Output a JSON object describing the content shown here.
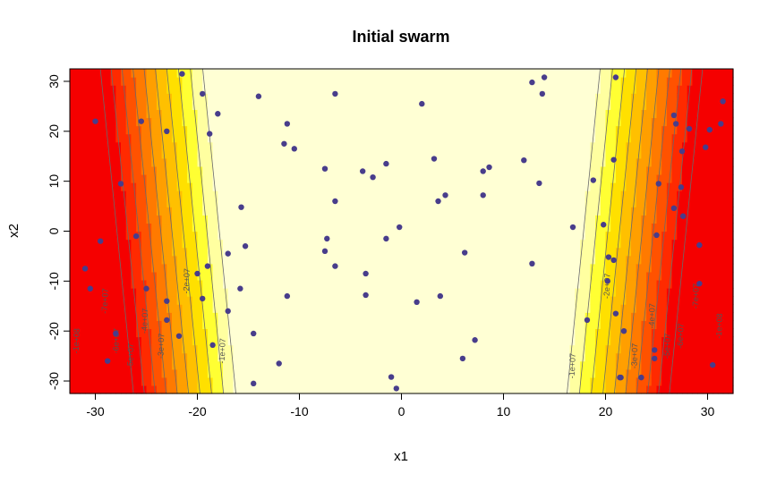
{
  "chart_data": {
    "type": "scatter",
    "title": "Initial swarm",
    "xlabel": "x1",
    "ylabel": "x2",
    "xlim": [
      -32.5,
      32.5
    ],
    "ylim": [
      -32.5,
      32.5
    ],
    "x_ticks": [
      -30,
      -20,
      -10,
      0,
      10,
      20,
      30
    ],
    "y_ticks": [
      -30,
      -20,
      -10,
      0,
      10,
      20,
      30
    ],
    "x_tick_labels": [
      "-30",
      "-20",
      "-10",
      "0",
      "10",
      "20",
      "30"
    ],
    "y_tick_labels": [
      "-30",
      "-20",
      "-10",
      "0",
      "10",
      "20",
      "30"
    ],
    "background": "filled contour",
    "fill_colors": [
      "#FFFFD4",
      "#FFFFA0",
      "#FFFF33",
      "#FFE000",
      "#FFC000",
      "#FF9F00",
      "#FF7A00",
      "#FF5200",
      "#FF2A00",
      "#F50000"
    ],
    "contour_levels": [
      10000000,
      20000000,
      30000000,
      40000000,
      50000000,
      60000000,
      70000000,
      80000000,
      90000000,
      100000000
    ],
    "contour_labels": [
      {
        "text": "-1e+07",
        "x": -17.3,
        "y": -24
      },
      {
        "text": "-2e+07",
        "x": -20.8,
        "y": -10
      },
      {
        "text": "-3e+07",
        "x": -23.3,
        "y": -23
      },
      {
        "text": "-4e+07",
        "x": -24.9,
        "y": -18
      },
      {
        "text": "-5e+07",
        "x": -26.3,
        "y": -25
      },
      {
        "text": "-6e+07",
        "x": -27.7,
        "y": -22
      },
      {
        "text": "-7e+07",
        "x": -28.8,
        "y": -14
      },
      {
        "text": "-1e+08",
        "x": -31.6,
        "y": -22
      },
      {
        "text": "-1e+07",
        "x": 17.0,
        "y": -27
      },
      {
        "text": "-2e+07",
        "x": 20.4,
        "y": -11
      },
      {
        "text": "-3e+07",
        "x": 23.1,
        "y": -25
      },
      {
        "text": "-4e+07",
        "x": 24.8,
        "y": -17
      },
      {
        "text": "-5e+07",
        "x": 26.3,
        "y": -23
      },
      {
        "text": "-6e+07",
        "x": 27.6,
        "y": -21
      },
      {
        "text": "-7e+07",
        "x": 29.1,
        "y": -13
      },
      {
        "text": "-1e+08",
        "x": 31.4,
        "y": -19
      }
    ],
    "point_color": "#483D8B",
    "points": [
      [
        -21.5,
        31.5
      ],
      [
        -30,
        22
      ],
      [
        -25.5,
        22
      ],
      [
        -23,
        20
      ],
      [
        -27.5,
        9.5
      ],
      [
        -19.5,
        27.5
      ],
      [
        -18,
        23.5
      ],
      [
        -18.8,
        19.5
      ],
      [
        -14,
        27
      ],
      [
        -11.2,
        21.5
      ],
      [
        -11.5,
        17.5
      ],
      [
        -10.5,
        16.5
      ],
      [
        -6.5,
        27.5
      ],
      [
        2,
        25.5
      ],
      [
        3.2,
        14.5
      ],
      [
        -7.5,
        12.5
      ],
      [
        -3.8,
        12
      ],
      [
        -1.5,
        13.5
      ],
      [
        -2.8,
        10.8
      ],
      [
        4.3,
        7.2
      ],
      [
        3.6,
        6
      ],
      [
        8,
        7.2
      ],
      [
        8,
        12
      ],
      [
        8.6,
        12.8
      ],
      [
        12,
        14.2
      ],
      [
        13.5,
        9.6
      ],
      [
        12.8,
        29.8
      ],
      [
        14,
        30.8
      ],
      [
        13.8,
        27.5
      ],
      [
        -6.5,
        6
      ],
      [
        -29.5,
        -2
      ],
      [
        -26,
        -1
      ],
      [
        -31,
        -7.5
      ],
      [
        -30.5,
        -11.5
      ],
      [
        -25,
        -11.5
      ],
      [
        -19,
        -7
      ],
      [
        -20,
        -8.5
      ],
      [
        -19.5,
        -13.5
      ],
      [
        -17,
        -4.5
      ],
      [
        -15.7,
        4.8
      ],
      [
        -15.3,
        -3
      ],
      [
        -15.8,
        -11.5
      ],
      [
        -17,
        -16
      ],
      [
        -7.3,
        -1.5
      ],
      [
        -7.5,
        -4
      ],
      [
        -6.5,
        -7
      ],
      [
        -3.5,
        -8.5
      ],
      [
        -1.5,
        -1.5
      ],
      [
        -0.2,
        0.8
      ],
      [
        -3.5,
        -12.8
      ],
      [
        -11.2,
        -13
      ],
      [
        -23,
        -14
      ],
      [
        -23,
        -17.8
      ],
      [
        -21.8,
        -21
      ],
      [
        -28,
        -20.5
      ],
      [
        -28.8,
        -26
      ],
      [
        -18.5,
        -22.8
      ],
      [
        -14.5,
        -20.5
      ],
      [
        -12,
        -26.5
      ],
      [
        -14.5,
        -30.5
      ],
      [
        -1,
        -29.2
      ],
      [
        -0.5,
        -31.5
      ],
      [
        1.5,
        -14.2
      ],
      [
        3.8,
        -13
      ],
      [
        6.2,
        -4.3
      ],
      [
        7.2,
        -21.8
      ],
      [
        6,
        -25.5
      ],
      [
        12.8,
        -6.5
      ],
      [
        16.8,
        0.8
      ],
      [
        18.8,
        10.2
      ],
      [
        19.8,
        1.3
      ],
      [
        20.3,
        -5.2
      ],
      [
        20.8,
        14.3
      ],
      [
        21,
        30.8
      ],
      [
        20.8,
        -5.8
      ],
      [
        20.2,
        -10
      ],
      [
        21,
        -16.5
      ],
      [
        18.2,
        -17.8
      ],
      [
        21.8,
        -20
      ],
      [
        21.5,
        -29.3
      ],
      [
        23.5,
        -29.3
      ],
      [
        24.8,
        -23.8
      ],
      [
        24.8,
        -25.5
      ],
      [
        25,
        -0.8
      ],
      [
        25.2,
        9.5
      ],
      [
        26.7,
        23.2
      ],
      [
        26.9,
        21.5
      ],
      [
        27.5,
        16
      ],
      [
        27.4,
        8.8
      ],
      [
        27.6,
        3
      ],
      [
        28.2,
        20.5
      ],
      [
        26.7,
        4.6
      ],
      [
        29.2,
        -2.8
      ],
      [
        29.2,
        -10.5
      ],
      [
        30.2,
        20.3
      ],
      [
        29.8,
        16.8
      ],
      [
        31.3,
        21.5
      ],
      [
        31.5,
        26
      ],
      [
        30.5,
        -26.8
      ],
      [
        21.4,
        -29.3
      ]
    ]
  }
}
